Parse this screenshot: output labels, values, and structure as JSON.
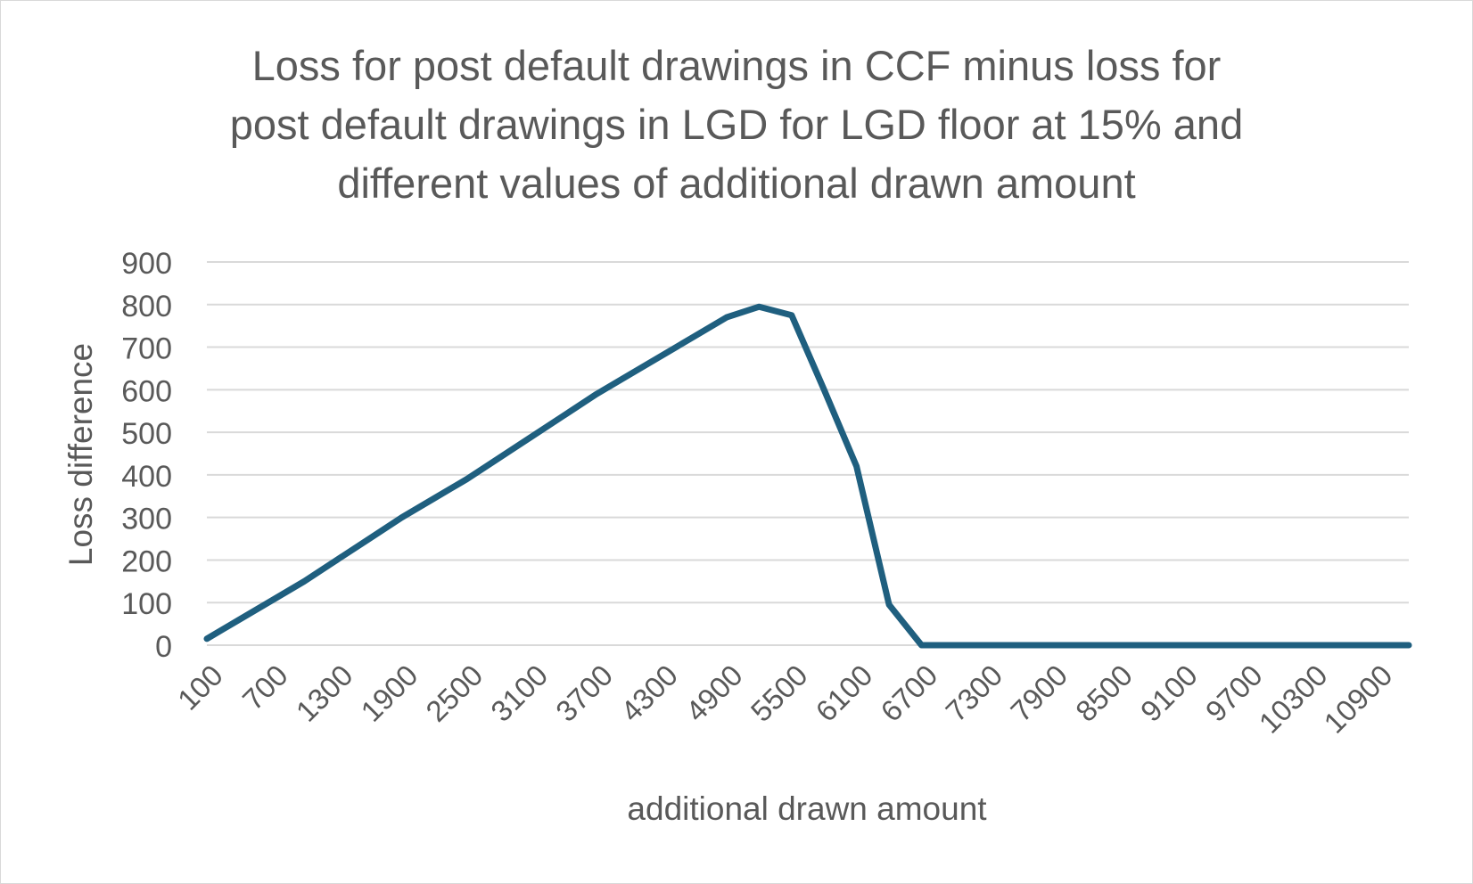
{
  "chart_data": {
    "type": "line",
    "title_lines": [
      "Loss for post default drawings in CCF minus loss for",
      "post default drawings in LGD for LGD floor at 15% and",
      "different values of additional drawn amount"
    ],
    "xlabel": "additional drawn amount",
    "ylabel": "Loss difference",
    "ylim": [
      0,
      900
    ],
    "yticks": [
      0,
      100,
      200,
      300,
      400,
      500,
      600,
      700,
      800,
      900
    ],
    "x_tick_labels": [
      "100",
      "700",
      "1300",
      "1900",
      "2500",
      "3100",
      "3700",
      "4300",
      "4900",
      "5500",
      "6100",
      "6700",
      "7300",
      "7900",
      "8500",
      "9100",
      "9700",
      "10300",
      "10900"
    ],
    "grid": true,
    "legend": "none",
    "series": [
      {
        "color": "#1f5f7f",
        "x": [
          100,
          400,
          700,
          1000,
          1300,
          1600,
          1900,
          2200,
          2500,
          2800,
          3100,
          3400,
          3700,
          4000,
          4300,
          4600,
          4900,
          5200,
          5500,
          5800,
          6100,
          6400,
          6700,
          7000,
          7300,
          7600,
          7900,
          8200,
          8500,
          8800,
          9100,
          9400,
          9700,
          10000,
          10300,
          10600,
          10900,
          11200
        ],
        "y": [
          15,
          60,
          105,
          150,
          200,
          250,
          300,
          345,
          390,
          440,
          490,
          540,
          590,
          635,
          680,
          725,
          770,
          795,
          775,
          600,
          420,
          95,
          0,
          0,
          0,
          0,
          0,
          0,
          0,
          0,
          0,
          0,
          0,
          0,
          0,
          0,
          0,
          0
        ]
      }
    ]
  }
}
